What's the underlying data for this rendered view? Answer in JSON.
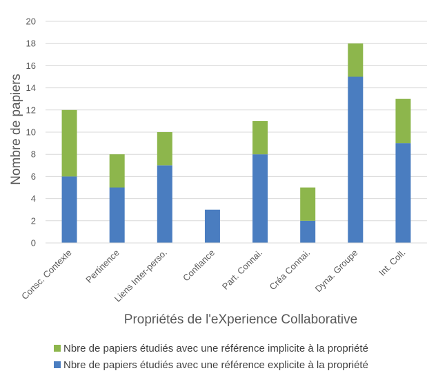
{
  "chart_data": {
    "type": "bar",
    "stacked": true,
    "title": "",
    "xlabel": "Propriétés de l'eXperience Collaborative",
    "ylabel": "Nombre de papiers",
    "ylim": [
      0,
      20
    ],
    "yticks": [
      0,
      2,
      4,
      6,
      8,
      10,
      12,
      14,
      16,
      18,
      20
    ],
    "grid": true,
    "legend_position": "bottom",
    "categories": [
      "Consc. Contexte",
      "Pertinence",
      "Liens Inter-perso.",
      "Confiance",
      "Part. Connai.",
      "Créa Connai.",
      "Dyna. Groupe",
      "Int. Coll."
    ],
    "series": [
      {
        "name": "Nbre de papiers étudiés avec une référence explicite à la propriété",
        "color": "#4a7dc0",
        "values": [
          6,
          5,
          7,
          3,
          8,
          2,
          15,
          9
        ]
      },
      {
        "name": "Nbre de papiers étudiés avec une référence implicite à la propriété",
        "color": "#8db64c",
        "values": [
          6,
          3,
          3,
          0,
          3,
          3,
          3,
          4
        ]
      }
    ],
    "legend_order": [
      1,
      0
    ]
  }
}
